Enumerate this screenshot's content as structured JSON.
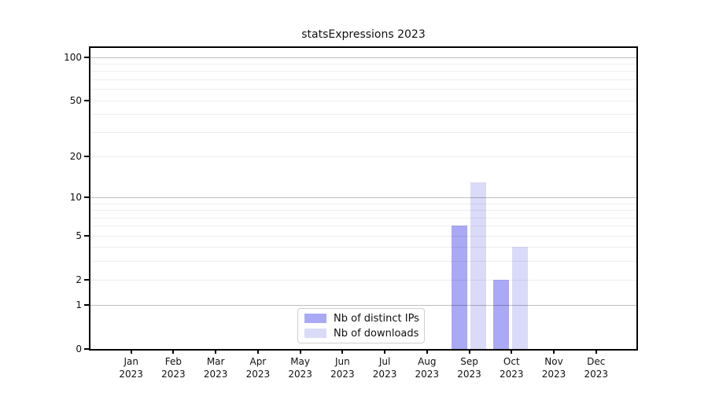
{
  "title": "statsExpressions 2023",
  "chart_data": {
    "type": "bar",
    "title": "statsExpressions 2023",
    "categories": [
      "Jan 2023",
      "Feb 2023",
      "Mar 2023",
      "Apr 2023",
      "May 2023",
      "Jun 2023",
      "Jul 2023",
      "Aug 2023",
      "Sep 2023",
      "Oct 2023",
      "Nov 2023",
      "Dec 2023"
    ],
    "series": [
      {
        "name": "Nb of distinct IPs",
        "color": "#a9a9f5",
        "values": [
          0,
          0,
          0,
          0,
          0,
          0,
          0,
          0,
          6,
          2,
          0,
          0
        ]
      },
      {
        "name": "Nb of downloads",
        "color": "#dadaf9",
        "values": [
          0,
          0,
          0,
          0,
          0,
          0,
          0,
          0,
          13,
          4,
          0,
          0
        ]
      }
    ],
    "xlabel": "",
    "ylabel": "",
    "yscale": "symlog: position proportional to log10(1+value)",
    "yticks": [
      0,
      1,
      2,
      5,
      10,
      20,
      50,
      100
    ],
    "ytick_labels": [
      "0",
      "1",
      "2",
      "5",
      "10",
      "20",
      "50",
      "100"
    ],
    "ylim": [
      0,
      117
    ],
    "grid": {
      "orientation": "horizontal",
      "major_at": [
        1,
        10,
        100
      ],
      "minor_at": [
        2,
        3,
        4,
        5,
        6,
        7,
        8,
        9,
        20,
        30,
        40,
        50,
        60,
        70,
        80,
        90
      ]
    },
    "legend_position": "inside-bottom-center"
  }
}
